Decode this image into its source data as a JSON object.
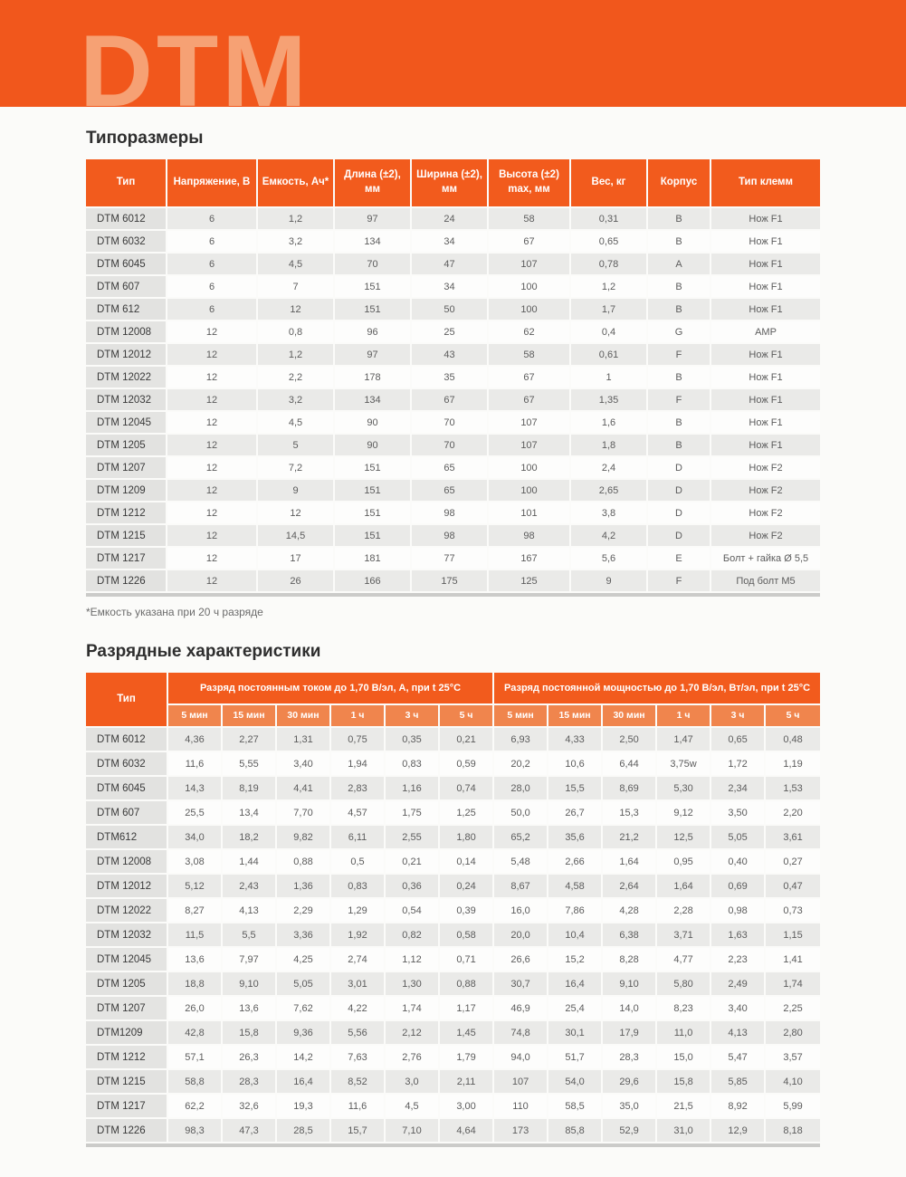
{
  "banner": {
    "logo": "DTM"
  },
  "colors": {
    "banner_bg": "#f1571c",
    "logo_text": "#f6a174",
    "table_header_orange": "#f25b1d",
    "table_subheader_orange": "#f0854d",
    "stripe_gray": "#eaeae8",
    "type_col_gray": "#e4e4e2"
  },
  "sizes": {
    "title": "Типоразмеры",
    "columns": [
      "Тип",
      "Напряжение, В",
      "Емкость, Ач*",
      "Длина (±2), мм",
      "Ширина (±2), мм",
      "Высота (±2) max, мм",
      "Вес, кг",
      "Корпус",
      "Тип клемм"
    ],
    "rows": [
      [
        "DTM 6012",
        "6",
        "1,2",
        "97",
        "24",
        "58",
        "0,31",
        "B",
        "Нож F1"
      ],
      [
        "DTM 6032",
        "6",
        "3,2",
        "134",
        "34",
        "67",
        "0,65",
        "B",
        "Нож F1"
      ],
      [
        "DTM 6045",
        "6",
        "4,5",
        "70",
        "47",
        "107",
        "0,78",
        "A",
        "Нож F1"
      ],
      [
        "DTM 607",
        "6",
        "7",
        "151",
        "34",
        "100",
        "1,2",
        "B",
        "Нож F1"
      ],
      [
        "DTM 612",
        "6",
        "12",
        "151",
        "50",
        "100",
        "1,7",
        "B",
        "Нож F1"
      ],
      [
        "DTM 12008",
        "12",
        "0,8",
        "96",
        "25",
        "62",
        "0,4",
        "G",
        "AMP"
      ],
      [
        "DTM 12012",
        "12",
        "1,2",
        "97",
        "43",
        "58",
        "0,61",
        "F",
        "Нож F1"
      ],
      [
        "DTM 12022",
        "12",
        "2,2",
        "178",
        "35",
        "67",
        "1",
        "B",
        "Нож F1"
      ],
      [
        "DTM 12032",
        "12",
        "3,2",
        "134",
        "67",
        "67",
        "1,35",
        "F",
        "Нож F1"
      ],
      [
        "DTM 12045",
        "12",
        "4,5",
        "90",
        "70",
        "107",
        "1,6",
        "B",
        "Нож F1"
      ],
      [
        "DTM 1205",
        "12",
        "5",
        "90",
        "70",
        "107",
        "1,8",
        "B",
        "Нож F1"
      ],
      [
        "DTM 1207",
        "12",
        "7,2",
        "151",
        "65",
        "100",
        "2,4",
        "D",
        "Нож F2"
      ],
      [
        "DTM 1209",
        "12",
        "9",
        "151",
        "65",
        "100",
        "2,65",
        "D",
        "Нож F2"
      ],
      [
        "DTM 1212",
        "12",
        "12",
        "151",
        "98",
        "101",
        "3,8",
        "D",
        "Нож F2"
      ],
      [
        "DTM 1215",
        "12",
        "14,5",
        "151",
        "98",
        "98",
        "4,2",
        "D",
        "Нож F2"
      ],
      [
        "DTM 1217",
        "12",
        "17",
        "181",
        "77",
        "167",
        "5,6",
        "E",
        "Болт + гайка Ø 5,5"
      ],
      [
        "DTM 1226",
        "12",
        "26",
        "166",
        "175",
        "125",
        "9",
        "F",
        "Под болт М5"
      ]
    ],
    "footnote": "*Емкость указана при 20 ч разряде"
  },
  "discharge": {
    "title": "Разрядные характеристики",
    "type_col": "Тип",
    "groups": [
      {
        "label": "Разряд постоянным током до 1,70 В/эл, А, при t 25°С",
        "sub": [
          "5 мин",
          "15 мин",
          "30 мин",
          "1 ч",
          "3 ч",
          "5 ч"
        ]
      },
      {
        "label": "Разряд постоянной мощностью до 1,70 В/эл, Вт/эл, при t 25°С",
        "sub": [
          "5 мин",
          "15 мин",
          "30 мин",
          "1 ч",
          "3 ч",
          "5 ч"
        ]
      }
    ],
    "rows": [
      [
        "DTM 6012",
        "4,36",
        "2,27",
        "1,31",
        "0,75",
        "0,35",
        "0,21",
        "6,93",
        "4,33",
        "2,50",
        "1,47",
        "0,65",
        "0,48"
      ],
      [
        "DTM 6032",
        "11,6",
        "5,55",
        "3,40",
        "1,94",
        "0,83",
        "0,59",
        "20,2",
        "10,6",
        "6,44",
        "3,75w",
        "1,72",
        "1,19"
      ],
      [
        "DTM 6045",
        "14,3",
        "8,19",
        "4,41",
        "2,83",
        "1,16",
        "0,74",
        "28,0",
        "15,5",
        "8,69",
        "5,30",
        "2,34",
        "1,53"
      ],
      [
        "DTM 607",
        "25,5",
        "13,4",
        "7,70",
        "4,57",
        "1,75",
        "1,25",
        "50,0",
        "26,7",
        "15,3",
        "9,12",
        "3,50",
        "2,20"
      ],
      [
        "DTM612",
        "34,0",
        "18,2",
        "9,82",
        "6,11",
        "2,55",
        "1,80",
        "65,2",
        "35,6",
        "21,2",
        "12,5",
        "5,05",
        "3,61"
      ],
      [
        "DTM 12008",
        "3,08",
        "1,44",
        "0,88",
        "0,5",
        "0,21",
        "0,14",
        "5,48",
        "2,66",
        "1,64",
        "0,95",
        "0,40",
        "0,27"
      ],
      [
        "DTM 12012",
        "5,12",
        "2,43",
        "1,36",
        "0,83",
        "0,36",
        "0,24",
        "8,67",
        "4,58",
        "2,64",
        "1,64",
        "0,69",
        "0,47"
      ],
      [
        "DTM 12022",
        "8,27",
        "4,13",
        "2,29",
        "1,29",
        "0,54",
        "0,39",
        "16,0",
        "7,86",
        "4,28",
        "2,28",
        "0,98",
        "0,73"
      ],
      [
        "DTM 12032",
        "11,5",
        "5,5",
        "3,36",
        "1,92",
        "0,82",
        "0,58",
        "20,0",
        "10,4",
        "6,38",
        "3,71",
        "1,63",
        "1,15"
      ],
      [
        "DTM 12045",
        "13,6",
        "7,97",
        "4,25",
        "2,74",
        "1,12",
        "0,71",
        "26,6",
        "15,2",
        "8,28",
        "4,77",
        "2,23",
        "1,41"
      ],
      [
        "DTM 1205",
        "18,8",
        "9,10",
        "5,05",
        "3,01",
        "1,30",
        "0,88",
        "30,7",
        "16,4",
        "9,10",
        "5,80",
        "2,49",
        "1,74"
      ],
      [
        "DTM 1207",
        "26,0",
        "13,6",
        "7,62",
        "4,22",
        "1,74",
        "1,17",
        "46,9",
        "25,4",
        "14,0",
        "8,23",
        "3,40",
        "2,25"
      ],
      [
        "DTM1209",
        "42,8",
        "15,8",
        "9,36",
        "5,56",
        "2,12",
        "1,45",
        "74,8",
        "30,1",
        "17,9",
        "11,0",
        "4,13",
        "2,80"
      ],
      [
        "DTM 1212",
        "57,1",
        "26,3",
        "14,2",
        "7,63",
        "2,76",
        "1,79",
        "94,0",
        "51,7",
        "28,3",
        "15,0",
        "5,47",
        "3,57"
      ],
      [
        "DTM 1215",
        "58,8",
        "28,3",
        "16,4",
        "8,52",
        "3,0",
        "2,11",
        "107",
        "54,0",
        "29,6",
        "15,8",
        "5,85",
        "4,10"
      ],
      [
        "DTM 1217",
        "62,2",
        "32,6",
        "19,3",
        "11,6",
        "4,5",
        "3,00",
        "110",
        "58,5",
        "35,0",
        "21,5",
        "8,92",
        "5,99"
      ],
      [
        "DTM 1226",
        "98,3",
        "47,3",
        "28,5",
        "15,7",
        "7,10",
        "4,64",
        "173",
        "85,8",
        "52,9",
        "31,0",
        "12,9",
        "8,18"
      ]
    ]
  }
}
